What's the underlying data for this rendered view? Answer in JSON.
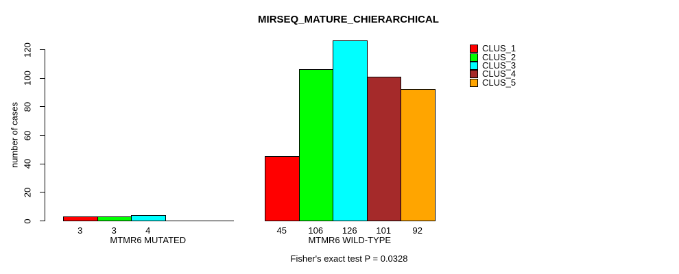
{
  "chart_data": {
    "type": "bar",
    "title": "MIRSEQ_MATURE_CHIERARCHICAL",
    "ylabel": "number of cases",
    "xlabel": "",
    "yticks": [
      0,
      20,
      40,
      60,
      80,
      100,
      120
    ],
    "ylim": [
      0,
      126
    ],
    "grid": false,
    "legend_position": "right",
    "series": [
      {
        "name": "CLUS_1",
        "color": "#FF0000"
      },
      {
        "name": "CLUS_2",
        "color": "#00FF00"
      },
      {
        "name": "CLUS_3",
        "color": "#00FFFF"
      },
      {
        "name": "CLUS_4",
        "color": "#A52A2A"
      },
      {
        "name": "CLUS_5",
        "color": "#FFA500"
      }
    ],
    "groups": [
      {
        "label": "MTMR6 MUTATED",
        "values": [
          3,
          3,
          4,
          0,
          0
        ],
        "bar_labels": [
          "3",
          "3",
          "4",
          "",
          ""
        ]
      },
      {
        "label": "MTMR6 WILD-TYPE",
        "values": [
          45,
          106,
          126,
          101,
          92
        ],
        "bar_labels": [
          "45",
          "106",
          "126",
          "101",
          "92"
        ]
      }
    ],
    "footnote": "Fisher's exact test P = 0.0328"
  }
}
